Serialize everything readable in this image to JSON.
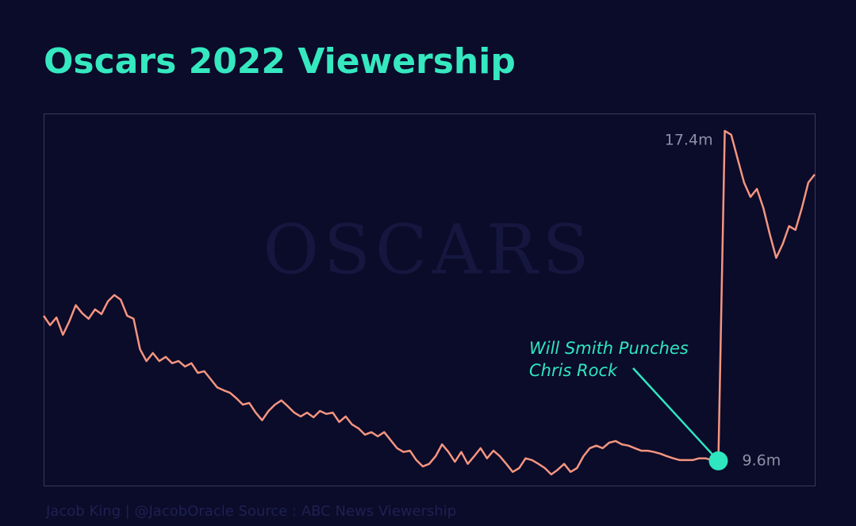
{
  "chart_data": {
    "type": "line",
    "title": "Oscars 2022 Viewership",
    "watermark": "OSCARS",
    "annotation": [
      "Will Smith Punches",
      "Chris Rock"
    ],
    "source": "Jacob King | @JacobOracle   Source : ABC News Viewership",
    "color": "#f4957f",
    "highlight_color": "#2ee6bf",
    "values": [
      13.03,
      12.81,
      12.99,
      12.58,
      12.9,
      13.28,
      13.09,
      12.96,
      13.18,
      13.07,
      13.37,
      13.52,
      13.41,
      13.03,
      12.96,
      12.24,
      11.96,
      12.15,
      11.96,
      12.06,
      11.91,
      11.96,
      11.83,
      11.91,
      11.68,
      11.72,
      11.53,
      11.34,
      11.27,
      11.21,
      11.08,
      10.93,
      10.97,
      10.74,
      10.56,
      10.78,
      10.93,
      11.03,
      10.89,
      10.74,
      10.65,
      10.74,
      10.63,
      10.78,
      10.71,
      10.74,
      10.52,
      10.65,
      10.46,
      10.37,
      10.22,
      10.28,
      10.18,
      10.28,
      10.09,
      9.9,
      9.81,
      9.84,
      9.62,
      9.47,
      9.53,
      9.71,
      9.99,
      9.81,
      9.58,
      9.81,
      9.53,
      9.71,
      9.9,
      9.66,
      9.84,
      9.71,
      9.53,
      9.34,
      9.43,
      9.66,
      9.62,
      9.53,
      9.43,
      9.28,
      9.39,
      9.53,
      9.34,
      9.43,
      9.71,
      9.9,
      9.96,
      9.9,
      10.03,
      10.07,
      9.99,
      9.96,
      9.9,
      9.84,
      9.84,
      9.81,
      9.77,
      9.71,
      9.66,
      9.62,
      9.62,
      9.62,
      9.66,
      9.66,
      9.62,
      9.6,
      17.4,
      17.31,
      16.74,
      16.18,
      15.84,
      16.03,
      15.58,
      14.96,
      14.4,
      14.72,
      15.15,
      15.06,
      15.58,
      16.18,
      16.37
    ],
    "value_labels": [
      null,
      null,
      null,
      null,
      null,
      null,
      null,
      null,
      null,
      null,
      null,
      null,
      null,
      null,
      null,
      null,
      null,
      null,
      null,
      null,
      null,
      null,
      null,
      null,
      null,
      null,
      null,
      null,
      null,
      null,
      null,
      null,
      null,
      null,
      null,
      null,
      null,
      null,
      null,
      null,
      null,
      null,
      null,
      null,
      null,
      null,
      null,
      null,
      null,
      null,
      null,
      null,
      null,
      null,
      null,
      null,
      null,
      null,
      null,
      null,
      null,
      null,
      null,
      null,
      null,
      null,
      null,
      null,
      null,
      null,
      null,
      null,
      null,
      null,
      null,
      null,
      null,
      null,
      null,
      null,
      null,
      null,
      null,
      null,
      null,
      null,
      null,
      null,
      null,
      null,
      null,
      null,
      null,
      null,
      null,
      null,
      null,
      null,
      null,
      null,
      null,
      null,
      null,
      null,
      null,
      "9.6m",
      "17.4m",
      null,
      null,
      null,
      null,
      null,
      null,
      null,
      null,
      null,
      null,
      null,
      null,
      null,
      null
    ]
  }
}
